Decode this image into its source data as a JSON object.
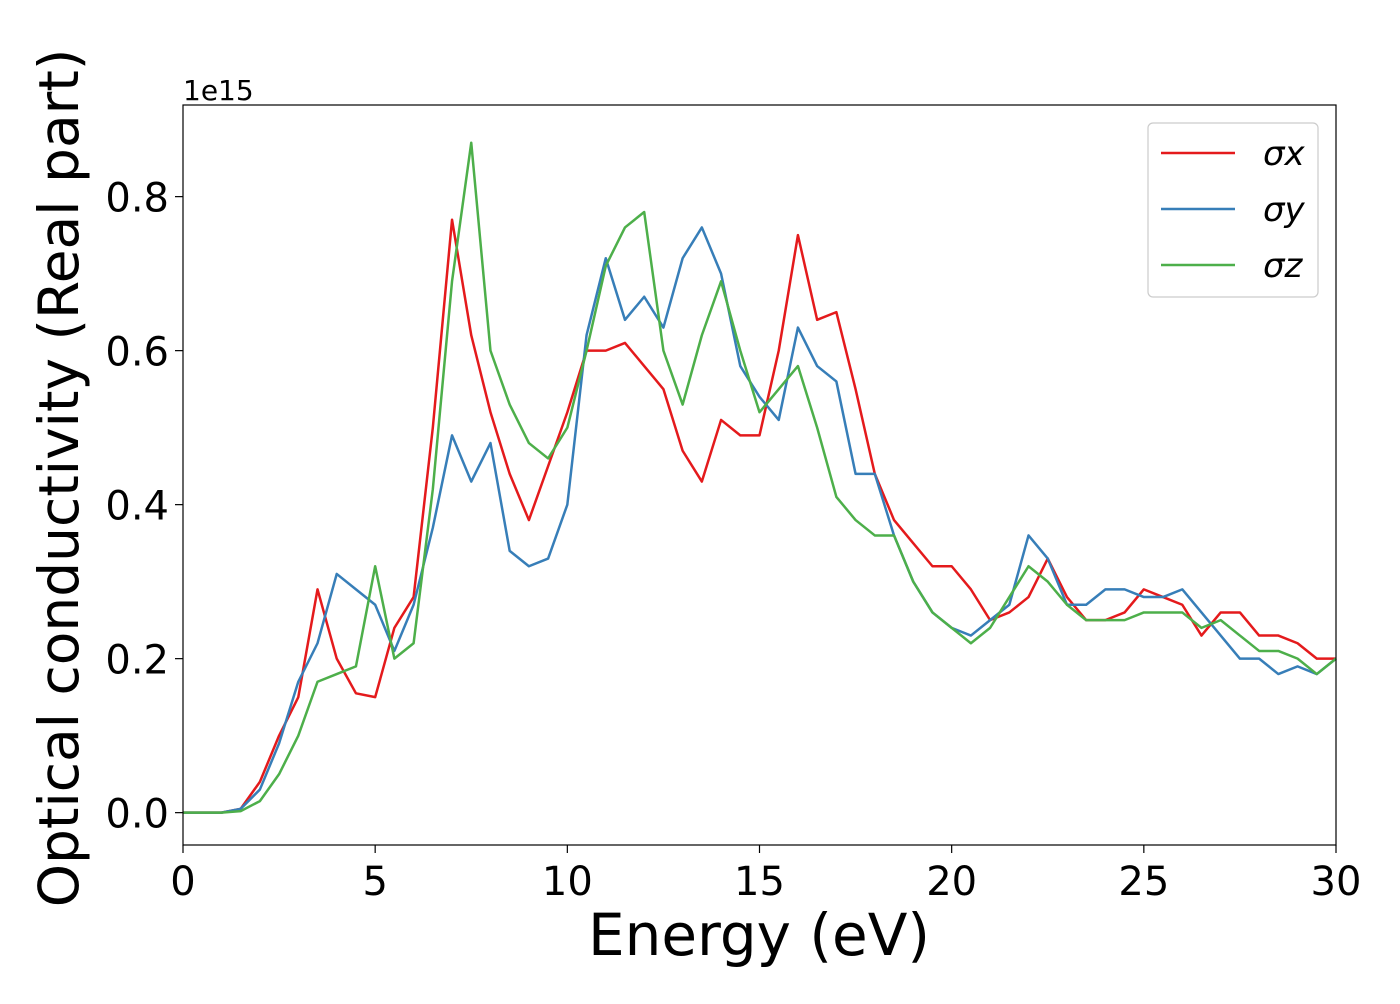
{
  "chart_data": {
    "type": "line",
    "xlabel": "Energy (eV)",
    "ylabel": "Optical conductivity (Real part)",
    "y_scale_label": "1e15",
    "x": [
      0,
      0.5,
      1,
      1.5,
      2,
      2.5,
      3,
      3.5,
      4,
      4.5,
      5,
      5.5,
      6,
      6.5,
      7,
      7.5,
      8,
      8.5,
      9,
      9.5,
      10,
      10.5,
      11,
      11.5,
      12,
      12.5,
      13,
      13.5,
      14,
      14.5,
      15,
      15.5,
      16,
      16.5,
      17,
      17.5,
      18,
      18.5,
      19,
      19.5,
      20,
      20.5,
      21,
      21.5,
      22,
      22.5,
      23,
      23.5,
      24,
      24.5,
      25,
      25.5,
      26,
      26.5,
      27,
      27.5,
      28,
      28.5,
      29,
      29.5,
      30
    ],
    "series": [
      {
        "name": "σx",
        "color": "#e41a1c",
        "values": [
          0,
          0,
          0,
          0.005,
          0.04,
          0.1,
          0.15,
          0.29,
          0.2,
          0.155,
          0.15,
          0.24,
          0.28,
          0.5,
          0.77,
          0.62,
          0.52,
          0.44,
          0.38,
          0.45,
          0.52,
          0.6,
          0.6,
          0.61,
          0.58,
          0.55,
          0.47,
          0.43,
          0.51,
          0.49,
          0.49,
          0.6,
          0.75,
          0.64,
          0.65,
          0.55,
          0.44,
          0.38,
          0.35,
          0.32,
          0.32,
          0.29,
          0.25,
          0.26,
          0.28,
          0.33,
          0.28,
          0.25,
          0.25,
          0.26,
          0.29,
          0.28,
          0.27,
          0.23,
          0.26,
          0.26,
          0.23,
          0.23,
          0.22,
          0.2,
          0.2
        ]
      },
      {
        "name": "σy",
        "color": "#377eb8",
        "values": [
          0,
          0,
          0,
          0.005,
          0.03,
          0.09,
          0.17,
          0.22,
          0.31,
          0.29,
          0.27,
          0.21,
          0.27,
          0.37,
          0.49,
          0.43,
          0.48,
          0.34,
          0.32,
          0.33,
          0.4,
          0.62,
          0.72,
          0.64,
          0.67,
          0.63,
          0.72,
          0.76,
          0.7,
          0.58,
          0.54,
          0.51,
          0.63,
          0.58,
          0.56,
          0.44,
          0.44,
          0.36,
          0.3,
          0.26,
          0.24,
          0.23,
          0.25,
          0.27,
          0.36,
          0.33,
          0.27,
          0.27,
          0.29,
          0.29,
          0.28,
          0.28,
          0.29,
          0.26,
          0.23,
          0.2,
          0.2,
          0.18,
          0.19,
          0.18,
          0.2
        ]
      },
      {
        "name": "σz",
        "color": "#4daf4a",
        "values": [
          0,
          0,
          0,
          0.002,
          0.015,
          0.05,
          0.1,
          0.17,
          0.18,
          0.19,
          0.32,
          0.2,
          0.22,
          0.42,
          0.69,
          0.87,
          0.6,
          0.53,
          0.48,
          0.46,
          0.5,
          0.6,
          0.71,
          0.76,
          0.78,
          0.6,
          0.53,
          0.62,
          0.69,
          0.6,
          0.52,
          0.55,
          0.58,
          0.5,
          0.41,
          0.38,
          0.36,
          0.36,
          0.3,
          0.26,
          0.24,
          0.22,
          0.24,
          0.28,
          0.32,
          0.3,
          0.27,
          0.25,
          0.25,
          0.25,
          0.26,
          0.26,
          0.26,
          0.24,
          0.25,
          0.23,
          0.21,
          0.21,
          0.2,
          0.18,
          0.2
        ]
      }
    ],
    "xlim": [
      0,
      30
    ],
    "xticks": [
      0,
      5,
      10,
      15,
      20,
      25,
      30
    ],
    "ylim": [
      -0.042,
      0.919
    ],
    "yticks": [
      {
        "value": 0,
        "label": "0.0"
      },
      0.2,
      0.4,
      0.6,
      0.8
    ],
    "grid": false,
    "legend": "upper right"
  }
}
